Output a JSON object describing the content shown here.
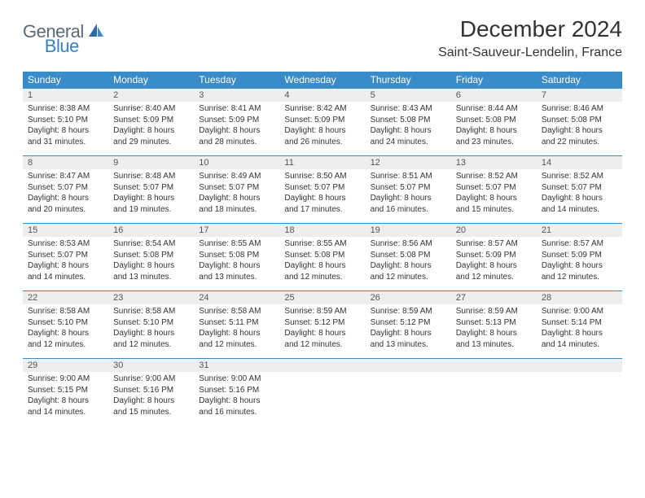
{
  "logo": {
    "part1": "General",
    "part2": "Blue"
  },
  "title": "December 2024",
  "location": "Saint-Sauveur-Lendelin, France",
  "colors": {
    "header_bg": "#3a8cc9",
    "daynum_bg": "#eceeef",
    "border": "#3a8cc9",
    "text": "#333333",
    "logo_gray": "#5a6a78",
    "logo_blue": "#3a7fc4"
  },
  "day_names": [
    "Sunday",
    "Monday",
    "Tuesday",
    "Wednesday",
    "Thursday",
    "Friday",
    "Saturday"
  ],
  "weeks": [
    {
      "nums": [
        "1",
        "2",
        "3",
        "4",
        "5",
        "6",
        "7"
      ],
      "cells": [
        {
          "sr": "8:38 AM",
          "ss": "5:10 PM",
          "dh": 8,
          "dm": 31
        },
        {
          "sr": "8:40 AM",
          "ss": "5:09 PM",
          "dh": 8,
          "dm": 29
        },
        {
          "sr": "8:41 AM",
          "ss": "5:09 PM",
          "dh": 8,
          "dm": 28
        },
        {
          "sr": "8:42 AM",
          "ss": "5:09 PM",
          "dh": 8,
          "dm": 26
        },
        {
          "sr": "8:43 AM",
          "ss": "5:08 PM",
          "dh": 8,
          "dm": 24
        },
        {
          "sr": "8:44 AM",
          "ss": "5:08 PM",
          "dh": 8,
          "dm": 23
        },
        {
          "sr": "8:46 AM",
          "ss": "5:08 PM",
          "dh": 8,
          "dm": 22
        }
      ]
    },
    {
      "nums": [
        "8",
        "9",
        "10",
        "11",
        "12",
        "13",
        "14"
      ],
      "cells": [
        {
          "sr": "8:47 AM",
          "ss": "5:07 PM",
          "dh": 8,
          "dm": 20
        },
        {
          "sr": "8:48 AM",
          "ss": "5:07 PM",
          "dh": 8,
          "dm": 19
        },
        {
          "sr": "8:49 AM",
          "ss": "5:07 PM",
          "dh": 8,
          "dm": 18
        },
        {
          "sr": "8:50 AM",
          "ss": "5:07 PM",
          "dh": 8,
          "dm": 17
        },
        {
          "sr": "8:51 AM",
          "ss": "5:07 PM",
          "dh": 8,
          "dm": 16
        },
        {
          "sr": "8:52 AM",
          "ss": "5:07 PM",
          "dh": 8,
          "dm": 15
        },
        {
          "sr": "8:52 AM",
          "ss": "5:07 PM",
          "dh": 8,
          "dm": 14
        }
      ]
    },
    {
      "nums": [
        "15",
        "16",
        "17",
        "18",
        "19",
        "20",
        "21"
      ],
      "cells": [
        {
          "sr": "8:53 AM",
          "ss": "5:07 PM",
          "dh": 8,
          "dm": 14
        },
        {
          "sr": "8:54 AM",
          "ss": "5:08 PM",
          "dh": 8,
          "dm": 13
        },
        {
          "sr": "8:55 AM",
          "ss": "5:08 PM",
          "dh": 8,
          "dm": 13
        },
        {
          "sr": "8:55 AM",
          "ss": "5:08 PM",
          "dh": 8,
          "dm": 12
        },
        {
          "sr": "8:56 AM",
          "ss": "5:08 PM",
          "dh": 8,
          "dm": 12
        },
        {
          "sr": "8:57 AM",
          "ss": "5:09 PM",
          "dh": 8,
          "dm": 12
        },
        {
          "sr": "8:57 AM",
          "ss": "5:09 PM",
          "dh": 8,
          "dm": 12
        }
      ]
    },
    {
      "nums": [
        "22",
        "23",
        "24",
        "25",
        "26",
        "27",
        "28"
      ],
      "cells": [
        {
          "sr": "8:58 AM",
          "ss": "5:10 PM",
          "dh": 8,
          "dm": 12
        },
        {
          "sr": "8:58 AM",
          "ss": "5:10 PM",
          "dh": 8,
          "dm": 12
        },
        {
          "sr": "8:58 AM",
          "ss": "5:11 PM",
          "dh": 8,
          "dm": 12
        },
        {
          "sr": "8:59 AM",
          "ss": "5:12 PM",
          "dh": 8,
          "dm": 12
        },
        {
          "sr": "8:59 AM",
          "ss": "5:12 PM",
          "dh": 8,
          "dm": 13
        },
        {
          "sr": "8:59 AM",
          "ss": "5:13 PM",
          "dh": 8,
          "dm": 13
        },
        {
          "sr": "9:00 AM",
          "ss": "5:14 PM",
          "dh": 8,
          "dm": 14
        }
      ]
    },
    {
      "nums": [
        "29",
        "30",
        "31",
        "",
        "",
        "",
        ""
      ],
      "cells": [
        {
          "sr": "9:00 AM",
          "ss": "5:15 PM",
          "dh": 8,
          "dm": 14
        },
        {
          "sr": "9:00 AM",
          "ss": "5:16 PM",
          "dh": 8,
          "dm": 15
        },
        {
          "sr": "9:00 AM",
          "ss": "5:16 PM",
          "dh": 8,
          "dm": 16
        },
        null,
        null,
        null,
        null
      ]
    }
  ],
  "labels": {
    "sunrise": "Sunrise:",
    "sunset": "Sunset:",
    "daylight_prefix": "Daylight:",
    "hours_word": "hours",
    "and_word": "and",
    "minutes_word": "minutes."
  }
}
